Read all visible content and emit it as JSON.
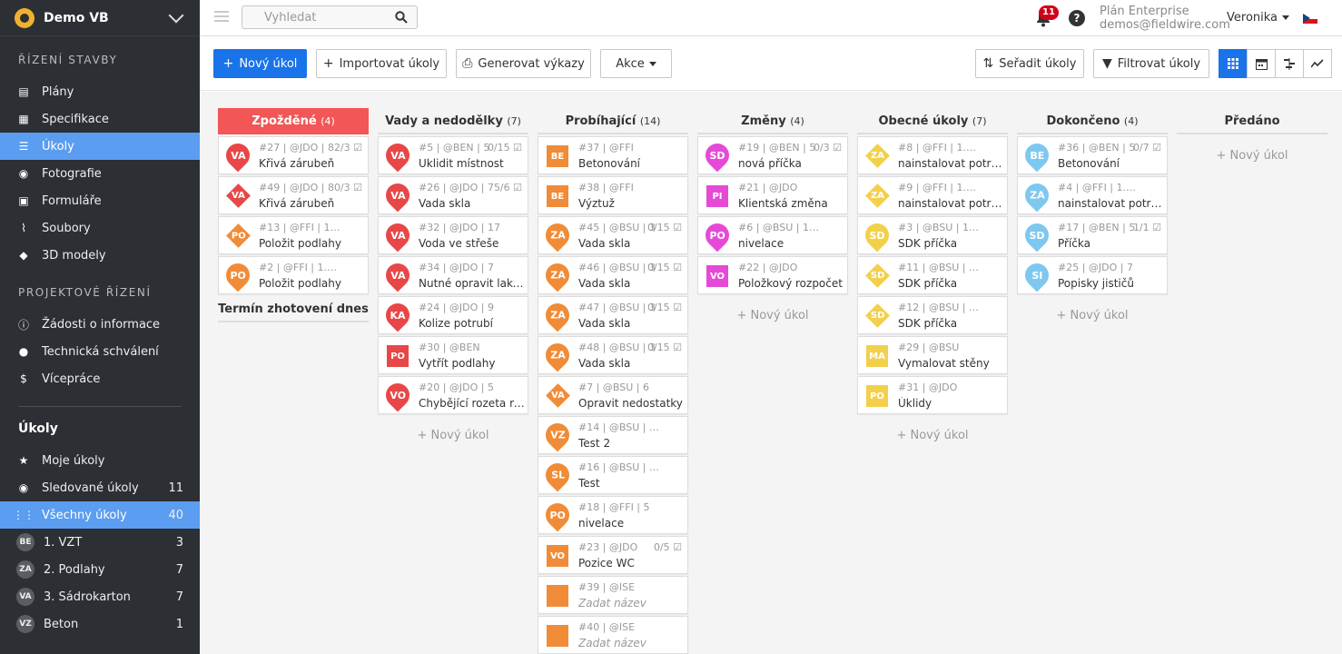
{
  "project": {
    "name": "Demo VB"
  },
  "sidebar": {
    "section_build": "ŘÍZENÍ STAVBY",
    "build_items": [
      {
        "label": "Plány",
        "icon": "map-icon"
      },
      {
        "label": "Specifikace",
        "icon": "spec-icon"
      },
      {
        "label": "Úkoly",
        "icon": "tasks-icon"
      },
      {
        "label": "Fotografie",
        "icon": "camera-icon"
      },
      {
        "label": "Formuláře",
        "icon": "forms-icon"
      },
      {
        "label": "Soubory",
        "icon": "paperclip-icon"
      },
      {
        "label": "3D modely",
        "icon": "cube-icon"
      }
    ],
    "section_project": "PROJEKTOVÉ ŘÍZENÍ",
    "project_items": [
      {
        "label": "Žádosti o informace",
        "icon": "info-doc-icon"
      },
      {
        "label": "Technická schválení",
        "icon": "person-icon"
      },
      {
        "label": "Vícepráce",
        "icon": "dollar-doc-icon"
      }
    ],
    "tasks_group": "Úkoly",
    "task_items": [
      {
        "label": "Moje úkoly",
        "icon": "star-icon",
        "count": ""
      },
      {
        "label": "Sledované úkoly",
        "icon": "eye-icon",
        "count": "11"
      },
      {
        "label": "Všechny úkoly",
        "icon": "grid-icon",
        "count": "40"
      },
      {
        "label": "1. VZT",
        "avatar": "BE",
        "count": "3"
      },
      {
        "label": "2. Podlahy",
        "avatar": "ZA",
        "count": "7"
      },
      {
        "label": "3. Sádrokarton",
        "avatar": "VA",
        "count": "7"
      },
      {
        "label": "Beton",
        "avatar": "VZ",
        "count": "1"
      }
    ]
  },
  "topbar": {
    "search_placeholder": "Vyhledat",
    "notifications": "11",
    "help": "?",
    "plan": "Plán Enterprise",
    "email": "demos@fieldwire.com",
    "user": "Veronika"
  },
  "toolbar": {
    "new_task": "Nový úkol",
    "import": "Importovat úkoly",
    "generate": "Generovat výkazy",
    "actions": "Akce",
    "sort": "Seřadit úkoly",
    "filter": "Filtrovat úkoly"
  },
  "colors": {
    "red": "#e84747",
    "orange": "#f08c38",
    "yellow": "#f3d04b",
    "magenta": "#e54ad6",
    "blue": "#7ec8f0",
    "late": "#f25656",
    "accent": "#1a73e8"
  },
  "add_label": "+ Nový úkol",
  "columns": [
    {
      "title": "Zpožděné",
      "count": "(4)",
      "late": true,
      "subheader": "Termín zhotovení dnes",
      "add": false,
      "cards": [
        {
          "meta": "#27 | @JDO | 8",
          "check": "2/3",
          "title": "Křivá zárubeň",
          "shape": "pin",
          "color": "#e84747",
          "code": "VA"
        },
        {
          "meta": "#49 | @JDO | 8",
          "check": "0/3",
          "title": "Křivá zárubeň",
          "shape": "dia",
          "color": "#e84747",
          "code": "VA"
        },
        {
          "meta": "#13 | @FFI | 1.NP TYP I",
          "check": "",
          "title": "Položit podlahy",
          "shape": "dia",
          "color": "#f08c38",
          "code": "PO"
        },
        {
          "meta": "#2 | @FFI | 1.NP TYP I",
          "check": "",
          "title": "Položit podlahy",
          "shape": "pin",
          "color": "#f08c38",
          "code": "PO"
        }
      ]
    },
    {
      "title": "Vady a nedodělky",
      "count": "(7)",
      "add": true,
      "cards": [
        {
          "meta": "#5 | @BEN | 5",
          "check": "0/15",
          "title": "Uklidit místnost",
          "shape": "pin",
          "color": "#e84747",
          "code": "VA"
        },
        {
          "meta": "#26 | @JDO | 7",
          "check": "5/6",
          "title": "Vada skla",
          "shape": "pin",
          "color": "#e84747",
          "code": "VA"
        },
        {
          "meta": "#32 | @JDO | 17",
          "check": "",
          "title": "Voda ve střeše",
          "shape": "pin",
          "color": "#e84747",
          "code": "VA"
        },
        {
          "meta": "#34 | @JDO | 7",
          "check": "",
          "title": "Nutné opravit lakování",
          "shape": "pin",
          "color": "#e84747",
          "code": "VA"
        },
        {
          "meta": "#24 | @JDO | 9",
          "check": "",
          "title": "Kolize potrubí",
          "shape": "pin",
          "color": "#e84747",
          "code": "KA"
        },
        {
          "meta": "#30 | @BEN",
          "check": "",
          "title": "Vytřít podlahy",
          "shape": "sq",
          "color": "#e84747",
          "code": "PO"
        },
        {
          "meta": "#20 | @JDO | 5",
          "check": "",
          "title": "Chybějící rozeta ro...",
          "shape": "pin",
          "color": "#e84747",
          "code": "VO"
        }
      ]
    },
    {
      "title": "Probíhající",
      "count": "(14)",
      "add": false,
      "cards": [
        {
          "meta": "#37 | @FFI",
          "check": "",
          "title": "Betonování",
          "shape": "sq",
          "color": "#f08c38",
          "code": "BE"
        },
        {
          "meta": "#38 | @FFI",
          "check": "",
          "title": "Výztuž",
          "shape": "sq",
          "color": "#f08c38",
          "code": "BE"
        },
        {
          "meta": "#45 | @BSU | 3",
          "check": "0/15",
          "title": "Vada skla",
          "shape": "pin",
          "color": "#f08c38",
          "code": "ZA"
        },
        {
          "meta": "#46 | @BSU | 3",
          "check": "0/15",
          "title": "Vada skla",
          "shape": "pin",
          "color": "#f08c38",
          "code": "ZA"
        },
        {
          "meta": "#47 | @BSU | 3",
          "check": "0/15",
          "title": "Vada skla",
          "shape": "pin",
          "color": "#f08c38",
          "code": "ZA"
        },
        {
          "meta": "#48 | @BSU | 3",
          "check": "0/15",
          "title": "Vada skla",
          "shape": "pin",
          "color": "#f08c38",
          "code": "ZA"
        },
        {
          "meta": "#7 | @BSU | 6",
          "check": "",
          "title": "Opravit nedostatky",
          "shape": "dia",
          "color": "#f08c38",
          "code": "VA"
        },
        {
          "meta": "#14 | @BSU | 3.NP TY...",
          "check": "",
          "title": "Test 2",
          "shape": "pin",
          "color": "#f08c38",
          "code": "VZ"
        },
        {
          "meta": "#16 | @BSU | 3.NP TY...",
          "check": "",
          "title": "Test",
          "shape": "pin",
          "color": "#f08c38",
          "code": "SL"
        },
        {
          "meta": "#18 | @FFI | 5",
          "check": "",
          "title": "nivelace",
          "shape": "pin",
          "color": "#f08c38",
          "code": "PO"
        },
        {
          "meta": "#23 | @JDO",
          "check": "0/5",
          "title": "Pozice WC",
          "shape": "sq",
          "color": "#f08c38",
          "code": "VO"
        },
        {
          "meta": "#39 | @ISE",
          "check": "",
          "title": "Zadat název",
          "placeholder": true,
          "shape": "sq",
          "color": "#f08c38",
          "code": ""
        },
        {
          "meta": "#40 | @ISE",
          "check": "",
          "title": "Zadat název",
          "placeholder": true,
          "shape": "sq",
          "color": "#f08c38",
          "code": ""
        }
      ]
    },
    {
      "title": "Změny",
      "count": "(4)",
      "add": true,
      "cards": [
        {
          "meta": "#19 | @BEN | 5",
          "check": "0/3",
          "title": "nová příčka",
          "shape": "pin",
          "color": "#e54ad6",
          "code": "SD"
        },
        {
          "meta": "#21 | @JDO",
          "check": "",
          "title": "Klientská změna",
          "shape": "sq",
          "color": "#e54ad6",
          "code": "PI"
        },
        {
          "meta": "#6 | @BSU | 1.NP TYP I",
          "check": "",
          "title": "nivelace",
          "shape": "pin",
          "color": "#e54ad6",
          "code": "PO"
        },
        {
          "meta": "#22 | @JDO",
          "check": "",
          "title": "Položkový rozpočet",
          "shape": "sq",
          "color": "#e54ad6",
          "code": "VO"
        }
      ]
    },
    {
      "title": "Obecné úkoly",
      "count": "(7)",
      "add": true,
      "cards": [
        {
          "meta": "#8 | @FFI | 1.NP TYP I",
          "check": "",
          "title": "nainstalovat potrubí",
          "shape": "dia",
          "color": "#f3d04b",
          "code": "ZA"
        },
        {
          "meta": "#9 | @FFI | 1.NP TYP I",
          "check": "",
          "title": "nainstalovat potrubí",
          "shape": "dia",
          "color": "#f3d04b",
          "code": "ZA"
        },
        {
          "meta": "#3 | @BSU | 1.NP TYP I",
          "check": "",
          "title": "SDK příčka",
          "shape": "pin",
          "color": "#f3d04b",
          "code": "SD"
        },
        {
          "meta": "#11 | @BSU | 1.NP TY...",
          "check": "",
          "title": "SDK příčka",
          "shape": "dia",
          "color": "#f3d04b",
          "code": "SD"
        },
        {
          "meta": "#12 | @BSU | 1.NP TY...",
          "check": "",
          "title": "SDK příčka",
          "shape": "dia",
          "color": "#f3d04b",
          "code": "SD"
        },
        {
          "meta": "#29 | @BSU",
          "check": "",
          "title": "Vymalovat stěny",
          "shape": "sq",
          "color": "#f3d04b",
          "code": "MA"
        },
        {
          "meta": "#31 | @JDO",
          "check": "",
          "title": "Úklidy",
          "shape": "sq",
          "color": "#f3d04b",
          "code": "PO"
        }
      ]
    },
    {
      "title": "Dokončeno",
      "count": "(4)",
      "add": true,
      "cards": [
        {
          "meta": "#36 | @BEN | 5",
          "check": "0/7",
          "title": "Betonování",
          "shape": "pin",
          "color": "#7ec8f0",
          "code": "BE"
        },
        {
          "meta": "#4 | @FFI | 1.NP TYP I",
          "check": "",
          "title": "nainstalovat potrubí",
          "shape": "pin",
          "color": "#7ec8f0",
          "code": "ZA"
        },
        {
          "meta": "#17 | @BEN | 5",
          "check": "1/1",
          "title": "Příčka",
          "shape": "pin",
          "color": "#7ec8f0",
          "code": "SD"
        },
        {
          "meta": "#25 | @JDO | 7",
          "check": "",
          "title": "Popisky jističů",
          "shape": "pin",
          "color": "#7ec8f0",
          "code": "SI"
        }
      ]
    },
    {
      "title": "Předáno",
      "count": "",
      "add": true,
      "cards": []
    }
  ]
}
